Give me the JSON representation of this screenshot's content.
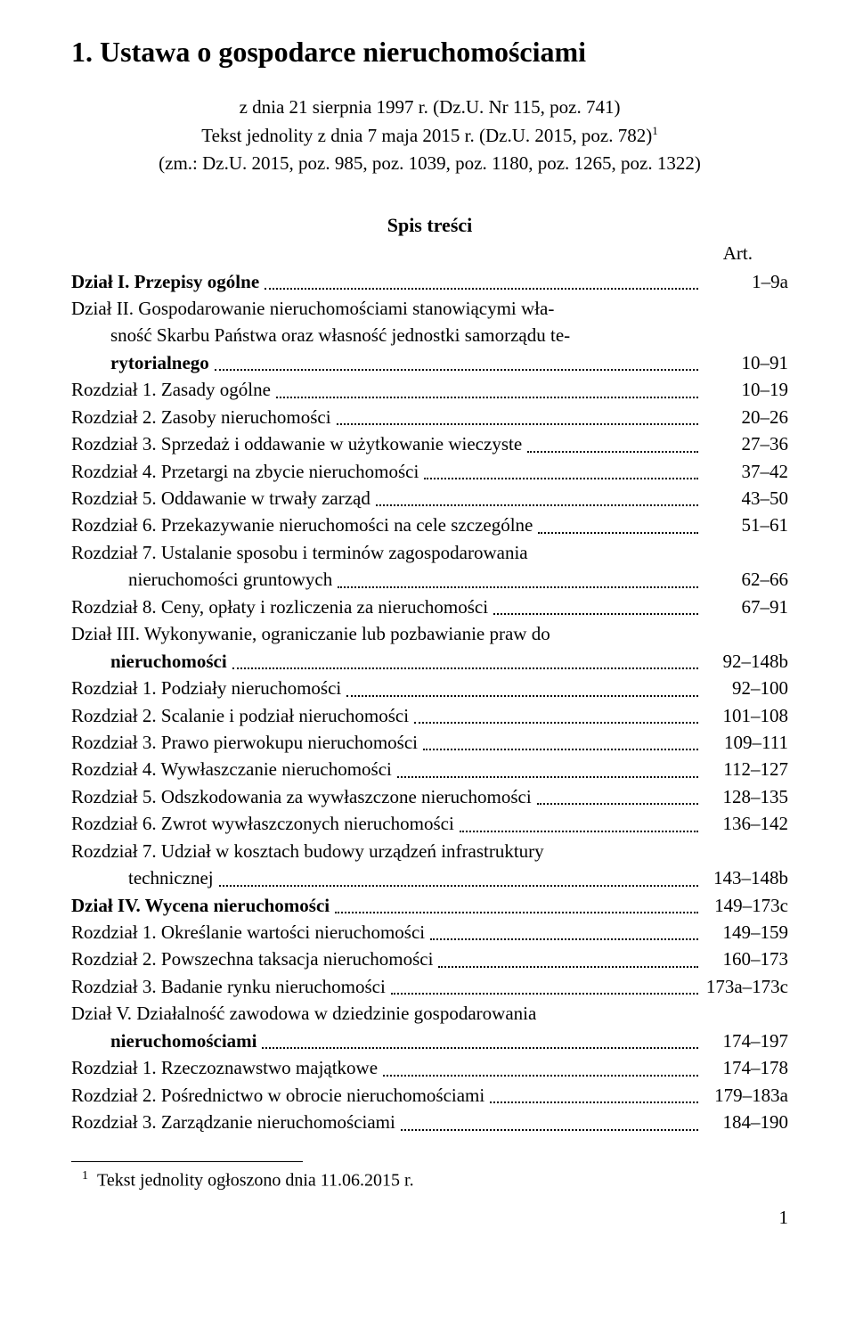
{
  "title": "1. Ustawa o gospodarce nieruchomościami",
  "subtitle": {
    "line1": "z dnia 21 sierpnia 1997 r. (Dz.U. Nr 115, poz. 741)",
    "line2_pre": "Tekst jednolity z dnia 7 maja 2015 r. (Dz.U. 2015, poz. 782)",
    "line2_sup": "1",
    "line3": "(zm.: Dz.U. 2015, poz. 985, poz. 1039, poz. 1180, poz. 1265, poz. 1322)"
  },
  "toc_heading": "Spis treści",
  "art_label": "Art.",
  "entries": [
    {
      "bold": true,
      "indent": 0,
      "text": "Dział I. Przepisy ogólne",
      "range": "1–9a"
    },
    {
      "bold": true,
      "indent": 0,
      "multiline": true,
      "lines": [
        "Dział II. Gospodarowanie nieruchomościami stanowiącymi wła-",
        "sność Skarbu Państwa oraz własność jednostki samorządu te-",
        "rytorialnego"
      ],
      "range": "10–91"
    },
    {
      "bold": false,
      "indent": 1,
      "text": "Rozdział 1. Zasady ogólne",
      "range": "10–19"
    },
    {
      "bold": false,
      "indent": 1,
      "text": "Rozdział 2. Zasoby nieruchomości",
      "range": "20–26"
    },
    {
      "bold": false,
      "indent": 1,
      "text": "Rozdział 3. Sprzedaż i oddawanie w użytkowanie wieczyste",
      "range": "27–36"
    },
    {
      "bold": false,
      "indent": 1,
      "text": "Rozdział 4. Przetargi na zbycie nieruchomości",
      "range": "37–42"
    },
    {
      "bold": false,
      "indent": 1,
      "text": "Rozdział 5. Oddawanie w trwały zarząd",
      "range": "43–50"
    },
    {
      "bold": false,
      "indent": 1,
      "text": "Rozdział 6. Przekazywanie nieruchomości na cele szczególne",
      "range": "51–61"
    },
    {
      "bold": false,
      "indent": 1,
      "multiline": true,
      "lines": [
        "Rozdział 7. Ustalanie sposobu i terminów zagospodarowania",
        "nieruchomości gruntowych"
      ],
      "cont_class": "continuation2",
      "range": "62–66"
    },
    {
      "bold": false,
      "indent": 1,
      "text": "Rozdział 8. Ceny, opłaty i rozliczenia za nieruchomości",
      "range": "67–91"
    },
    {
      "bold": true,
      "indent": 0,
      "multiline": true,
      "lines": [
        "Dział III. Wykonywanie, ograniczanie lub pozbawianie praw do",
        "nieruchomości"
      ],
      "range": "92–148b"
    },
    {
      "bold": false,
      "indent": 1,
      "text": "Rozdział 1. Podziały nieruchomości",
      "range": "92–100"
    },
    {
      "bold": false,
      "indent": 1,
      "text": "Rozdział 2. Scalanie i podział nieruchomości",
      "range": "101–108"
    },
    {
      "bold": false,
      "indent": 1,
      "text": "Rozdział 3. Prawo pierwokupu nieruchomości",
      "range": "109–111"
    },
    {
      "bold": false,
      "indent": 1,
      "text": "Rozdział 4. Wywłaszczanie nieruchomości",
      "range": "112–127"
    },
    {
      "bold": false,
      "indent": 1,
      "text": "Rozdział 5. Odszkodowania za wywłaszczone nieruchomości",
      "range": "128–135"
    },
    {
      "bold": false,
      "indent": 1,
      "text": "Rozdział 6. Zwrot wywłaszczonych nieruchomości",
      "range": "136–142"
    },
    {
      "bold": false,
      "indent": 1,
      "multiline": true,
      "lines": [
        "Rozdział 7. Udział w kosztach budowy urządzeń infrastruktury",
        "technicznej"
      ],
      "cont_class": "continuation2",
      "range": "143–148b"
    },
    {
      "bold": true,
      "indent": 0,
      "text": "Dział IV. Wycena nieruchomości",
      "range": "149–173c"
    },
    {
      "bold": false,
      "indent": 1,
      "text": "Rozdział 1. Określanie wartości nieruchomości",
      "range": "149–159"
    },
    {
      "bold": false,
      "indent": 1,
      "text": "Rozdział 2. Powszechna taksacja nieruchomości",
      "range": "160–173"
    },
    {
      "bold": false,
      "indent": 1,
      "text": "Rozdział 3. Badanie rynku nieruchomości",
      "range": "173a–173c"
    },
    {
      "bold": true,
      "indent": 0,
      "multiline": true,
      "lines": [
        "Dział V. Działalność zawodowa w dziedzinie gospodarowania",
        "nieruchomościami"
      ],
      "range": "174–197"
    },
    {
      "bold": false,
      "indent": 1,
      "text": "Rozdział 1. Rzeczoznawstwo majątkowe",
      "range": "174–178"
    },
    {
      "bold": false,
      "indent": 1,
      "text": "Rozdział 2. Pośrednictwo w obrocie nieruchomościami",
      "range": "179–183a"
    },
    {
      "bold": false,
      "indent": 1,
      "text": "Rozdział 3. Zarządzanie nieruchomościami",
      "range": "184–190"
    }
  ],
  "footnote": {
    "marker": "1",
    "text": "Tekst jednolity ogłoszono dnia 11.06.2015 r."
  },
  "page_number": "1"
}
